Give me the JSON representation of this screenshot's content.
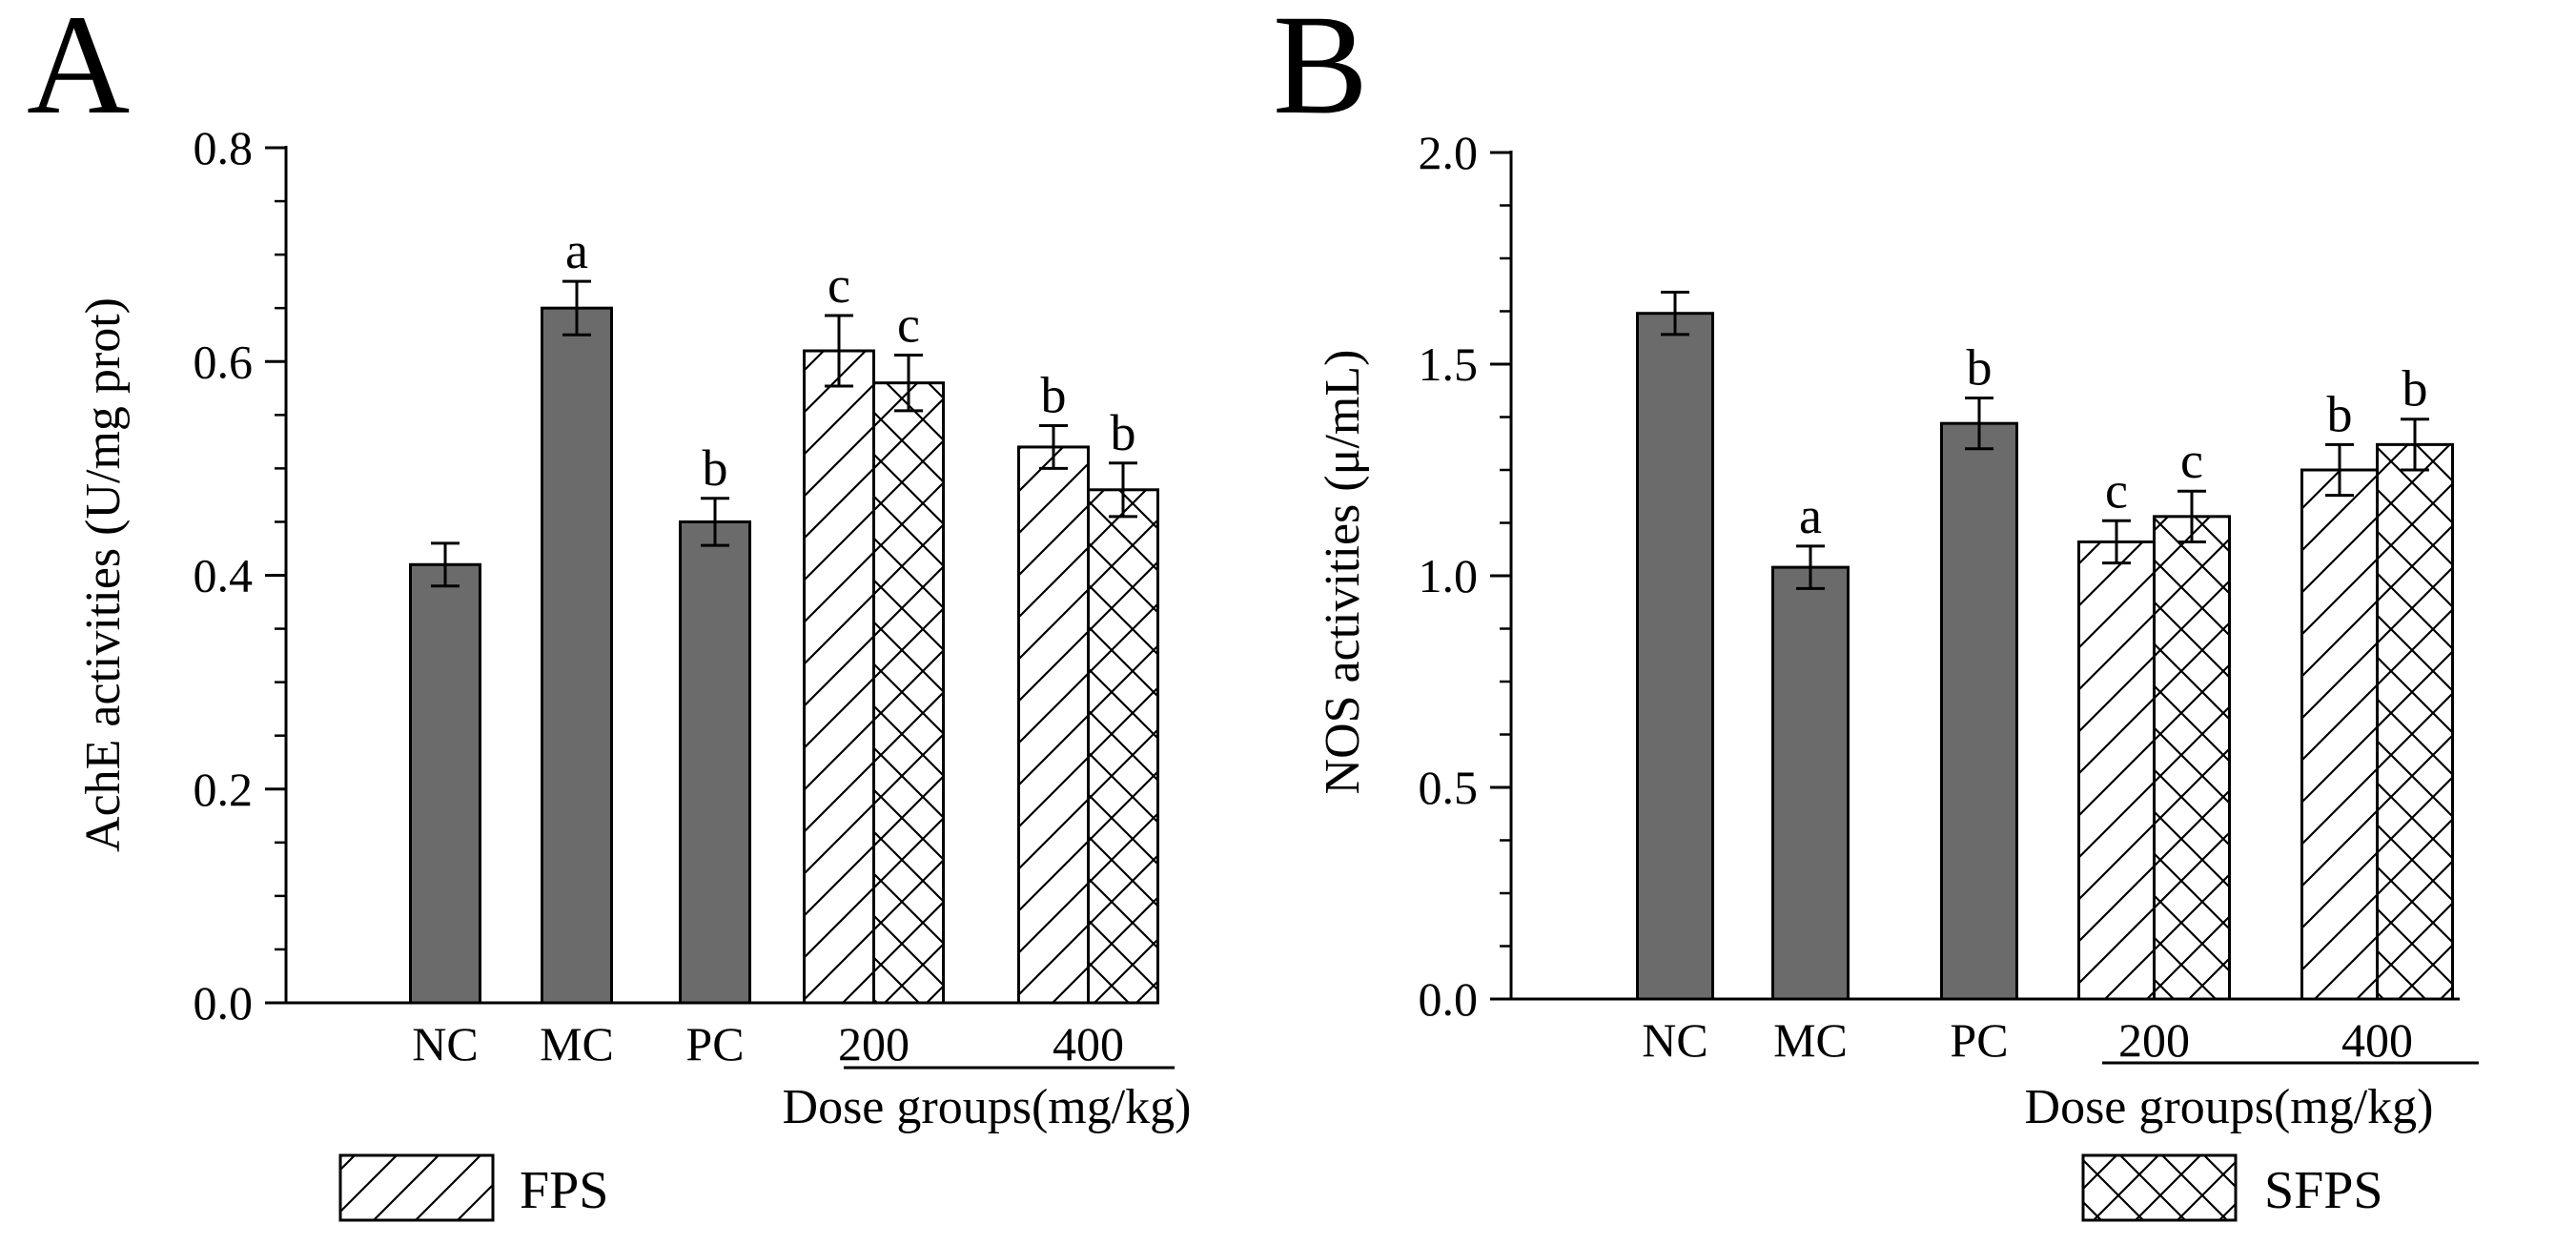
{
  "figure": {
    "legend": [
      {
        "label": "FPS",
        "pattern": "diagonal"
      },
      {
        "label": "SFPS",
        "pattern": "crosshatch"
      }
    ]
  },
  "colors": {
    "solid_fill": "#6b6b6b",
    "outline": "#000000",
    "background": "#ffffff"
  },
  "chart_data": [
    {
      "type": "bar",
      "panel": "A",
      "title": "",
      "xlabel": "Dose groups(mg/kg)",
      "ylabel": "AchE activities (U/mg prot)",
      "ylim": [
        0,
        0.8
      ],
      "yticks": [
        0.0,
        0.2,
        0.4,
        0.6,
        0.8
      ],
      "ytick_labels": [
        "0.0",
        "0.2",
        "0.4",
        "0.6",
        "0.8"
      ],
      "grid": false,
      "categories": [
        "NC",
        "MC",
        "PC",
        "200",
        "400"
      ],
      "dose_categories": [
        "200",
        "400"
      ],
      "bars": [
        {
          "category": "NC",
          "series": "control",
          "value": 0.41,
          "error": 0.02,
          "sig": ""
        },
        {
          "category": "MC",
          "series": "control",
          "value": 0.65,
          "error": 0.025,
          "sig": "a"
        },
        {
          "category": "PC",
          "series": "control",
          "value": 0.45,
          "error": 0.022,
          "sig": "b"
        },
        {
          "category": "200",
          "series": "FPS",
          "value": 0.61,
          "error": 0.033,
          "sig": "c"
        },
        {
          "category": "200",
          "series": "SFPS",
          "value": 0.58,
          "error": 0.026,
          "sig": "c"
        },
        {
          "category": "400",
          "series": "FPS",
          "value": 0.52,
          "error": 0.02,
          "sig": "b"
        },
        {
          "category": "400",
          "series": "SFPS",
          "value": 0.48,
          "error": 0.025,
          "sig": "b"
        }
      ]
    },
    {
      "type": "bar",
      "panel": "B",
      "title": "",
      "xlabel": "Dose groups(mg/kg)",
      "ylabel": "NOS activities (μ/mL)",
      "ylim": [
        0,
        2.0
      ],
      "yticks": [
        0.0,
        0.5,
        1.0,
        1.5,
        2.0
      ],
      "ytick_labels": [
        "0.0",
        "0.5",
        "1.0",
        "1.5",
        "2.0"
      ],
      "grid": false,
      "categories": [
        "NC",
        "MC",
        "PC",
        "200",
        "400"
      ],
      "dose_categories": [
        "200",
        "400"
      ],
      "bars": [
        {
          "category": "NC",
          "series": "control",
          "value": 1.62,
          "error": 0.05,
          "sig": ""
        },
        {
          "category": "MC",
          "series": "control",
          "value": 1.02,
          "error": 0.05,
          "sig": "a"
        },
        {
          "category": "PC",
          "series": "control",
          "value": 1.36,
          "error": 0.06,
          "sig": "b"
        },
        {
          "category": "200",
          "series": "FPS",
          "value": 1.08,
          "error": 0.05,
          "sig": "c"
        },
        {
          "category": "200",
          "series": "SFPS",
          "value": 1.14,
          "error": 0.06,
          "sig": "c"
        },
        {
          "category": "400",
          "series": "FPS",
          "value": 1.25,
          "error": 0.06,
          "sig": "b"
        },
        {
          "category": "400",
          "series": "SFPS",
          "value": 1.31,
          "error": 0.06,
          "sig": "b"
        }
      ]
    }
  ]
}
